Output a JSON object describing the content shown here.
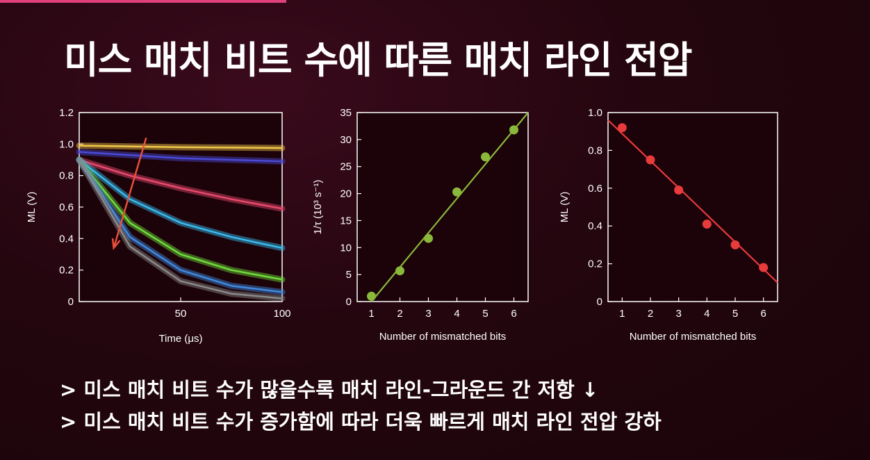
{
  "slide": {
    "title": "미스 매치 비트 수에 따른 매치 라인 전압",
    "accent_color": "#e0407a",
    "bullets": [
      "> 미스 매치 비트 수가 많을수록 매치 라인-그라운드 간 저항 ↓",
      "> 미스 매치 비트 수가 증가함에 따라 더욱 빠르게 매치 라인 전압 강하"
    ]
  },
  "chart_data": [
    {
      "type": "line",
      "xlabel": "Time (μs)",
      "ylabel": "ML (V)",
      "xlim": [
        0,
        100
      ],
      "ylim": [
        0,
        1.2
      ],
      "xticks": [
        "50",
        "100"
      ],
      "yticks": [
        "0",
        "0.2",
        "0.4",
        "0.6",
        "0.8",
        "1.0",
        "1.2"
      ],
      "series": [
        {
          "color": "#f2c84b",
          "x": [
            0,
            25,
            50,
            75,
            100
          ],
          "y": [
            0.99,
            0.985,
            0.98,
            0.978,
            0.975
          ]
        },
        {
          "color": "#4a4ad6",
          "x": [
            0,
            25,
            50,
            75,
            100
          ],
          "y": [
            0.95,
            0.93,
            0.91,
            0.9,
            0.89
          ]
        },
        {
          "color": "#e84a6f",
          "x": [
            0,
            25,
            50,
            75,
            100
          ],
          "y": [
            0.9,
            0.8,
            0.72,
            0.65,
            0.59
          ]
        },
        {
          "color": "#38bdf0",
          "x": [
            0,
            25,
            50,
            75,
            100
          ],
          "y": [
            0.9,
            0.65,
            0.5,
            0.41,
            0.34
          ]
        },
        {
          "color": "#6fdc3c",
          "x": [
            0,
            25,
            50,
            75,
            100
          ],
          "y": [
            0.9,
            0.5,
            0.3,
            0.2,
            0.14
          ]
        },
        {
          "color": "#3f8ae0",
          "x": [
            0,
            25,
            50,
            75,
            100
          ],
          "y": [
            0.9,
            0.41,
            0.2,
            0.1,
            0.06
          ]
        },
        {
          "color": "#8a8a8a",
          "x": [
            0,
            25,
            50,
            75,
            100
          ],
          "y": [
            0.9,
            0.35,
            0.13,
            0.05,
            0.02
          ]
        }
      ],
      "annotation": {
        "type": "arrow",
        "color": "#e8503a",
        "from": [
          33,
          1.04
        ],
        "to": [
          17,
          0.34
        ]
      }
    },
    {
      "type": "scatter",
      "xlabel": "Number of mismatched bits",
      "ylabel": "1/τ (10³ s⁻¹)",
      "xlim": [
        0.5,
        6.5
      ],
      "ylim": [
        0,
        35
      ],
      "xticks": [
        "1",
        "2",
        "3",
        "4",
        "5",
        "6"
      ],
      "yticks": [
        "0",
        "5",
        "10",
        "15",
        "20",
        "25",
        "30",
        "35"
      ],
      "color": "#8ab83a",
      "x": [
        1,
        2,
        3,
        4,
        5,
        6
      ],
      "y": [
        1,
        5.7,
        11.7,
        20.3,
        26.8,
        31.8
      ],
      "fit": {
        "x": [
          1,
          6.5
        ],
        "y": [
          0,
          35
        ]
      }
    },
    {
      "type": "scatter",
      "xlabel": "Number of mismatched bits",
      "ylabel": "ML (V)",
      "xlim": [
        0.5,
        6.5
      ],
      "ylim": [
        0,
        1.0
      ],
      "xticks": [
        "1",
        "2",
        "3",
        "4",
        "5",
        "6"
      ],
      "yticks": [
        "0",
        "0.2",
        "0.4",
        "0.6",
        "0.8",
        "1.0"
      ],
      "color": "#e83b3b",
      "x": [
        1,
        2,
        3,
        4,
        5,
        6
      ],
      "y": [
        0.92,
        0.75,
        0.59,
        0.41,
        0.3,
        0.18
      ],
      "fit": {
        "x": [
          0.5,
          6.5
        ],
        "y": [
          0.96,
          0.1
        ]
      }
    }
  ]
}
